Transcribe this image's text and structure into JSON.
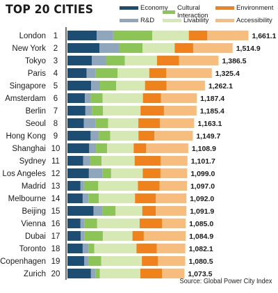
{
  "title": "TOP 20 CITIES",
  "source": "Source: Global Power City Index",
  "legend": [
    {
      "key": "economy",
      "label": "Economy",
      "color": "#1e4d73"
    },
    {
      "key": "cultural",
      "label": "Cultural Interaction",
      "color": "#8dc457"
    },
    {
      "key": "environment",
      "label": "Environment",
      "color": "#f0821e"
    },
    {
      "key": "rd",
      "label": "R&D",
      "color": "#8fa6bd"
    },
    {
      "key": "livability",
      "label": "Livability",
      "color": "#d6e8b3"
    },
    {
      "key": "accessibility",
      "label": "Accessibility",
      "color": "#f7bd7f"
    }
  ],
  "chart_data": {
    "type": "bar",
    "orientation": "horizontal",
    "stacked": true,
    "title": "TOP 20 CITIES",
    "categories": [
      "London",
      "New York",
      "Tokyo",
      "Paris",
      "Singapore",
      "Amsterdam",
      "Berlin",
      "Seoul",
      "Hong Kong",
      "Shanghai",
      "Sydney",
      "Los Angeles",
      "Madrid",
      "Melbourne",
      "Beijing",
      "Vienna",
      "Dubai",
      "Toronto",
      "Copenhagen",
      "Zurich"
    ],
    "ranks": [
      "1",
      "2",
      "3",
      "4",
      "5",
      "6",
      "7",
      "8",
      "9",
      "10",
      "11",
      "12",
      "13",
      "14",
      "15",
      "16",
      "17",
      "18",
      "19",
      "20"
    ],
    "totals": [
      "1,661.1",
      "1,514.9",
      "1,386.5",
      "1,325.4",
      "1,262.1",
      "1,187.4",
      "1,185.4",
      "1,163.1",
      "1,149.7",
      "1,108.9",
      "1,101.7",
      "1,099.0",
      "1,097.0",
      "1,092.0",
      "1,091.9",
      "1,085.0",
      "1,084.9",
      "1,082.1",
      "1,080.5",
      "1,073.5"
    ],
    "total_values": [
      1661.1,
      1514.9,
      1386.5,
      1325.4,
      1262.1,
      1187.4,
      1185.4,
      1163.1,
      1149.7,
      1108.9,
      1101.7,
      1099.0,
      1097.0,
      1092.0,
      1091.9,
      1085.0,
      1084.9,
      1082.1,
      1080.5,
      1073.5
    ],
    "series": [
      {
        "name": "Economy",
        "color": "#1e4d73",
        "values": [
          268,
          295,
          225,
          176,
          218,
          160,
          165,
          150,
          213,
          200,
          145,
          197,
          120,
          140,
          240,
          120,
          122,
          140,
          155,
          216
        ]
      },
      {
        "name": "R&D",
        "color": "#8fa6bd",
        "values": [
          152,
          183,
          129,
          80,
          82,
          53,
          60,
          106,
          76,
          62,
          62,
          124,
          32,
          53,
          84,
          35,
          33,
          52,
          40,
          41
        ]
      },
      {
        "name": "Cultural Interaction",
        "color": "#8dc457",
        "values": [
          358,
          211,
          173,
          205,
          148,
          110,
          102,
          117,
          104,
          102,
          106,
          80,
          131,
          95,
          118,
          118,
          170,
          55,
          115,
          40
        ]
      },
      {
        "name": "Livability",
        "color": "#d6e8b3",
        "values": [
          336,
          295,
          295,
          290,
          264,
          370,
          344,
          278,
          259,
          244,
          304,
          290,
          364,
          332,
          245,
          390,
          272,
          387,
          373,
          372
        ]
      },
      {
        "name": "Environment",
        "color": "#f0821e",
        "values": [
          170,
          170,
          203,
          155,
          197,
          165,
          215,
          197,
          147,
          115,
          238,
          163,
          198,
          192,
          123,
          205,
          104,
          186,
          148,
          200
        ]
      },
      {
        "name": "Accessibility",
        "color": "#f7bd7f",
        "values": [
          377,
          362,
          362,
          419,
          353,
          329,
          299,
          315,
          351,
          386,
          247,
          245,
          252,
          280,
          282,
          217,
          384,
          262,
          250,
          205
        ]
      }
    ],
    "xlim": [
      0,
      1750
    ],
    "grid": false,
    "legend_position": "top"
  }
}
